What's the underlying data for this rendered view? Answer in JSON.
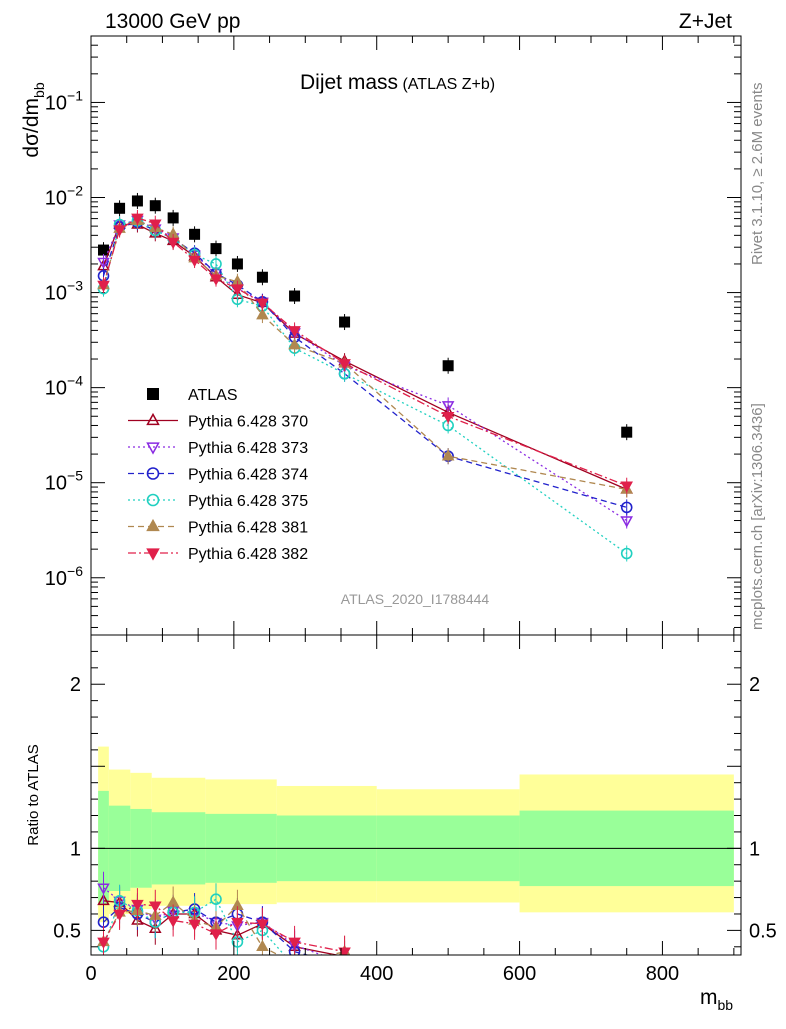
{
  "header": {
    "left": "13000 GeV pp",
    "right": "Z+Jet"
  },
  "side_labels": {
    "top": "Rivet 3.1.10, ≥ 2.6M events",
    "bottom": "mcplots.cern.ch [arXiv:1306.3436]"
  },
  "colors": {
    "ATLAS": "#000000",
    "p370": "#a00020",
    "p373": "#8a2be2",
    "p374": "#2222cc",
    "p375": "#20d0c0",
    "p381": "#b08850",
    "p382": "#e0204a",
    "band_outer": "#ffff99",
    "band_inner": "#99ff99"
  },
  "chart_data": [
    {
      "type": "scatter",
      "title": "Dijet mass",
      "subtitle": "(ATLAS Z+b)",
      "ylabel": "dσ/dm",
      "ylabel_sub": "bb",
      "xlabel": "m",
      "xlabel_sub": "bb",
      "yscale": "log",
      "ylim": [
        2.5e-07,
        0.5
      ],
      "xlim": [
        0,
        910
      ],
      "watermark": "ATLAS_2020_I1788444",
      "legend_position": "middle-left",
      "y_ticks": [
        {
          "v": 1e-06,
          "base": "10",
          "exp": "−6"
        },
        {
          "v": 1e-05,
          "base": "10",
          "exp": "−5"
        },
        {
          "v": 0.0001,
          "base": "10",
          "exp": "−4"
        },
        {
          "v": 0.001,
          "base": "10",
          "exp": "−3"
        },
        {
          "v": 0.01,
          "base": "10",
          "exp": "−2"
        },
        {
          "v": 0.1,
          "base": "10",
          "exp": "−1"
        }
      ],
      "x_ticks": [
        0,
        200,
        400,
        600,
        800
      ],
      "x": [
        17.5,
        40,
        65,
        90,
        115,
        145,
        175,
        205,
        240,
        285,
        355,
        500,
        750
      ],
      "series": [
        {
          "name": "ATLAS",
          "key": "ATLAS",
          "marker": "square",
          "line": "none",
          "values": [
            0.0028,
            0.0077,
            0.0092,
            0.0082,
            0.0061,
            0.0041,
            0.0029,
            0.002,
            0.00145,
            0.00092,
            0.00049,
            0.00017,
            3.4e-05
          ]
        },
        {
          "name": "Pythia 6.428 370",
          "key": "p370",
          "marker": "triangle-open",
          "line": "solid",
          "values": [
            0.0019,
            0.0052,
            0.0052,
            0.0042,
            0.0035,
            0.0024,
            0.00145,
            0.00095,
            0.00078,
            0.00037,
            0.00019,
            5.5e-05,
            8.5e-06
          ]
        },
        {
          "name": "Pythia 6.428 373",
          "key": "p373",
          "marker": "triangle-down-open",
          "line": "dotted",
          "values": [
            0.0021,
            0.0052,
            0.0058,
            0.0047,
            0.0038,
            0.0025,
            0.0016,
            0.0011,
            0.0008,
            0.00038,
            0.00017,
            6.5e-05,
            4e-06
          ]
        },
        {
          "name": "Pythia 6.428 374",
          "key": "p374",
          "marker": "circle-open",
          "line": "dashed",
          "values": [
            0.0015,
            0.0049,
            0.0055,
            0.0045,
            0.0037,
            0.0026,
            0.0016,
            0.0012,
            0.0008,
            0.00034,
            0.00014,
            1.9e-05,
            5.5e-06
          ]
        },
        {
          "name": "Pythia 6.428 375",
          "key": "p375",
          "marker": "circle-open",
          "line": "dotted",
          "values": [
            0.0011,
            0.0052,
            0.0057,
            0.0045,
            0.0037,
            0.0025,
            0.002,
            0.00085,
            0.00072,
            0.00026,
            0.00014,
            4e-05,
            1.8e-06
          ]
        },
        {
          "name": "Pythia 6.428 381",
          "key": "p381",
          "marker": "triangle-up",
          "line": "dashed",
          "values": [
            0.0012,
            0.0047,
            0.0057,
            0.0048,
            0.0041,
            0.0023,
            0.0015,
            0.0013,
            0.00058,
            0.00028,
            0.00018,
            1.9e-05,
            8.5e-06
          ]
        },
        {
          "name": "Pythia 6.428 382",
          "key": "p382",
          "marker": "triangle-down",
          "line": "dashdot",
          "values": [
            0.0012,
            0.0046,
            0.0061,
            0.0053,
            0.0034,
            0.0022,
            0.0014,
            0.0011,
            0.00078,
            0.0004,
            0.00018,
            5e-05,
            9.3e-06
          ]
        }
      ]
    },
    {
      "type": "scatter",
      "ylabel": "Ratio to ATLAS",
      "ylim": [
        0.35,
        2.3
      ],
      "xlim": [
        0,
        910
      ],
      "y_ticks": [
        0.5,
        1,
        2
      ],
      "y_tick_labels": [
        "0.5",
        "1",
        "2"
      ],
      "x_ticks": [
        0,
        200,
        400,
        600,
        800
      ],
      "bins": [
        {
          "lo": 10,
          "hi": 25,
          "inner": [
            0.66,
            1.35
          ],
          "outer": [
            0.55,
            1.62
          ]
        },
        {
          "lo": 25,
          "hi": 55,
          "inner": [
            0.74,
            1.26
          ],
          "outer": [
            0.6,
            1.48
          ]
        },
        {
          "lo": 55,
          "hi": 85,
          "inner": [
            0.76,
            1.24
          ],
          "outer": [
            0.63,
            1.46
          ]
        },
        {
          "lo": 85,
          "hi": 160,
          "inner": [
            0.78,
            1.22
          ],
          "outer": [
            0.65,
            1.43
          ]
        },
        {
          "lo": 160,
          "hi": 260,
          "inner": [
            0.79,
            1.21
          ],
          "outer": [
            0.66,
            1.42
          ]
        },
        {
          "lo": 260,
          "hi": 400,
          "inner": [
            0.8,
            1.2
          ],
          "outer": [
            0.67,
            1.38
          ]
        },
        {
          "lo": 400,
          "hi": 600,
          "inner": [
            0.8,
            1.2
          ],
          "outer": [
            0.67,
            1.36
          ]
        },
        {
          "lo": 600,
          "hi": 900,
          "inner": [
            0.77,
            1.23
          ],
          "outer": [
            0.61,
            1.45
          ]
        }
      ],
      "series": [
        {
          "key": "p370",
          "values": [
            0.68,
            0.67,
            0.56,
            0.51,
            0.6,
            0.6,
            0.5,
            0.47,
            0.54,
            0.4,
            0.34
          ]
        },
        {
          "key": "p373",
          "values": [
            0.76,
            0.68,
            0.63,
            0.57,
            0.62,
            0.61,
            0.55,
            0.53,
            0.55,
            0.41,
            0.3
          ]
        },
        {
          "key": "p374",
          "values": [
            0.55,
            0.64,
            0.6,
            0.55,
            0.61,
            0.63,
            0.55,
            0.6,
            0.55,
            0.37,
            0.29
          ]
        },
        {
          "key": "p375",
          "values": [
            0.4,
            0.68,
            0.62,
            0.55,
            0.61,
            0.61,
            0.69,
            0.43,
            0.5,
            0.28,
            0.28
          ]
        },
        {
          "key": "p381",
          "values": [
            0.43,
            0.61,
            0.62,
            0.59,
            0.67,
            0.56,
            0.52,
            0.65,
            0.4,
            0.3,
            0.37
          ]
        },
        {
          "key": "p382",
          "values": [
            0.43,
            0.6,
            0.66,
            0.65,
            0.56,
            0.54,
            0.48,
            0.55,
            0.54,
            0.43,
            0.37
          ]
        }
      ]
    }
  ]
}
